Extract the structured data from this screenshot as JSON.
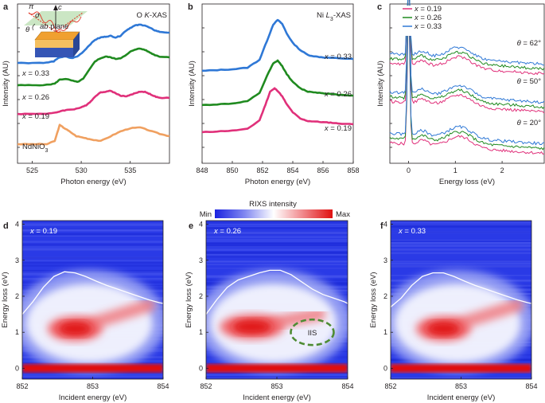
{
  "colors": {
    "x019": "#e0307a",
    "x026": "#1f8a1f",
    "x033": "#2f78d6",
    "nd": "#f0a060",
    "iis": "#4e8c34",
    "axis": "#231f20"
  },
  "panel_labels": {
    "a": "a",
    "b": "b",
    "c": "c",
    "d": "d",
    "e": "e",
    "f": "f"
  },
  "chart_data": [
    {
      "id": "a",
      "type": "line",
      "title": "O K-XAS",
      "title_parts": {
        "pre": "O ",
        "italic": "K",
        "post": "-XAS"
      },
      "xlabel": "Photon energy (eV)",
      "ylabel": "Intensity (AU)",
      "xlim": [
        523.5,
        539
      ],
      "xticks": [
        525,
        530,
        535
      ],
      "ylim": [
        0,
        1
      ],
      "series": [
        {
          "name": "NdNiO3",
          "label_parts": [
            "NdNiO",
            "3"
          ],
          "color_key": "nd",
          "x": [
            523.5,
            525,
            526.5,
            527.3,
            527.8,
            528.3,
            528.8,
            529.5,
            530.3,
            531,
            532,
            533,
            534,
            535,
            536,
            537,
            538,
            539
          ],
          "y": [
            0.12,
            0.12,
            0.12,
            0.14,
            0.24,
            0.22,
            0.2,
            0.17,
            0.16,
            0.15,
            0.14,
            0.17,
            0.2,
            0.22,
            0.225,
            0.205,
            0.185,
            0.17
          ]
        },
        {
          "name": "x = 0.19",
          "label_parts": [
            "x",
            " = 0.19"
          ],
          "color_key": "x019",
          "x": [
            523.5,
            525,
            526.5,
            527.5,
            528,
            528.6,
            529.3,
            530,
            530.5,
            531,
            531.5,
            532,
            532.5,
            533,
            533.5,
            534,
            534.5,
            535,
            535.5,
            536,
            536.5,
            537,
            537.5,
            538,
            539
          ],
          "y": [
            0.31,
            0.31,
            0.312,
            0.318,
            0.33,
            0.335,
            0.34,
            0.35,
            0.365,
            0.39,
            0.425,
            0.445,
            0.45,
            0.455,
            0.44,
            0.425,
            0.42,
            0.428,
            0.44,
            0.45,
            0.448,
            0.435,
            0.42,
            0.41,
            0.41
          ]
        },
        {
          "name": "x = 0.26",
          "label_parts": [
            "x",
            " = 0.26"
          ],
          "color_key": "x026",
          "x": [
            523.5,
            525,
            526.5,
            527.3,
            527.8,
            528.4,
            529,
            529.6,
            530.2,
            530.8,
            531.4,
            532,
            532.5,
            533,
            533.5,
            534,
            534.5,
            535,
            535.5,
            536,
            536.5,
            537,
            537.5,
            538,
            539
          ],
          "y": [
            0.49,
            0.49,
            0.492,
            0.5,
            0.525,
            0.53,
            0.52,
            0.51,
            0.53,
            0.585,
            0.64,
            0.66,
            0.67,
            0.665,
            0.655,
            0.66,
            0.675,
            0.7,
            0.715,
            0.72,
            0.712,
            0.695,
            0.68,
            0.67,
            0.665
          ]
        },
        {
          "name": "x = 0.33",
          "label_parts": [
            "x",
            " = 0.33"
          ],
          "color_key": "x033",
          "x": [
            523.5,
            525,
            526.5,
            527.2,
            527.8,
            528.4,
            529,
            529.6,
            530.2,
            530.8,
            531.4,
            532,
            532.5,
            533,
            533.5,
            534,
            534.5,
            535,
            535.5,
            536,
            536.5,
            537,
            537.5,
            538,
            539
          ],
          "y": [
            0.63,
            0.63,
            0.632,
            0.64,
            0.665,
            0.67,
            0.66,
            0.67,
            0.7,
            0.74,
            0.775,
            0.79,
            0.795,
            0.8,
            0.79,
            0.8,
            0.83,
            0.85,
            0.865,
            0.87,
            0.865,
            0.85,
            0.835,
            0.825,
            0.82
          ]
        }
      ],
      "inset": {
        "pi": "π",
        "sigma": "σ",
        "theta": "θ",
        "c": "c",
        "ab": "ab",
        "plane": " plane"
      }
    },
    {
      "id": "b",
      "type": "line",
      "title": "Ni L3-XAS",
      "title_parts": {
        "pre": "Ni ",
        "italic": "L",
        "sub": "3",
        "post": "-XAS"
      },
      "xlabel": "Photon energy (eV)",
      "ylabel": "Intensity (AU)",
      "xlim": [
        848,
        858
      ],
      "xticks": [
        848,
        850,
        852,
        854,
        856,
        858
      ],
      "ylim": [
        0,
        1
      ],
      "series": [
        {
          "name": "x = 0.19",
          "label_parts": [
            "x",
            " = 0.19"
          ],
          "color_key": "x019",
          "x": [
            848,
            849,
            850,
            851,
            851.8,
            852.2,
            852.5,
            852.8,
            853,
            853.3,
            853.6,
            854,
            854.5,
            855,
            855.5,
            856,
            856.5,
            857,
            858
          ],
          "y": [
            0.195,
            0.2,
            0.205,
            0.215,
            0.27,
            0.37,
            0.45,
            0.47,
            0.455,
            0.42,
            0.37,
            0.32,
            0.28,
            0.265,
            0.262,
            0.258,
            0.255,
            0.25,
            0.245
          ]
        },
        {
          "name": "x = 0.26",
          "label_parts": [
            "x",
            " = 0.26"
          ],
          "color_key": "x026",
          "x": [
            848,
            849,
            850,
            851,
            851.8,
            852.3,
            852.7,
            853,
            853.3,
            853.6,
            854,
            854.5,
            855,
            855.5,
            856,
            856.5,
            857,
            858
          ],
          "y": [
            0.365,
            0.37,
            0.375,
            0.39,
            0.44,
            0.55,
            0.625,
            0.645,
            0.61,
            0.56,
            0.51,
            0.47,
            0.45,
            0.445,
            0.44,
            0.435,
            0.43,
            0.425
          ]
        },
        {
          "name": "x = 0.33",
          "label_parts": [
            "x",
            " = 0.33"
          ],
          "color_key": "x033",
          "x": [
            848,
            849,
            850,
            851,
            851.8,
            852.3,
            852.7,
            853,
            853.3,
            853.6,
            854,
            854.5,
            855,
            855.5,
            856,
            856.5,
            857,
            858
          ],
          "y": [
            0.58,
            0.585,
            0.59,
            0.6,
            0.65,
            0.77,
            0.87,
            0.9,
            0.875,
            0.815,
            0.755,
            0.71,
            0.68,
            0.67,
            0.665,
            0.662,
            0.66,
            0.655
          ]
        }
      ]
    },
    {
      "id": "c",
      "type": "line",
      "xlabel": "Energy loss (eV)",
      "ylabel": "Intensity (AU)",
      "xlim": [
        -0.4,
        2.9
      ],
      "xticks": [
        0,
        1,
        2
      ],
      "ylim": [
        0,
        1
      ],
      "legend": {
        "position": "top-left",
        "entries": [
          {
            "label_parts": [
              "x",
              " = 0.19"
            ],
            "color_key": "x019"
          },
          {
            "label_parts": [
              "x",
              " = 0.26"
            ],
            "color_key": "x026"
          },
          {
            "label_parts": [
              "x",
              " = 0.33"
            ],
            "color_key": "x033"
          }
        ]
      },
      "angles": [
        {
          "label_parts": [
            "θ",
            " = 20°"
          ],
          "base": 0.1
        },
        {
          "label_parts": [
            "θ",
            " = 50°"
          ],
          "base": 0.36
        },
        {
          "label_parts": [
            "θ",
            " = 62°"
          ],
          "base": 0.6
        }
      ],
      "series": [
        {
          "name": "x = 0.19",
          "color_key": "x019",
          "offset": 0
        },
        {
          "name": "x = 0.26",
          "color_key": "x026",
          "offset": 0.03
        },
        {
          "name": "x = 0.33",
          "color_key": "x033",
          "offset": 0.06
        }
      ]
    },
    {
      "id": "d",
      "type": "heatmap",
      "label_parts": [
        "x",
        " = 0.19"
      ],
      "xlabel": "Incident energy (eV)",
      "ylabel": "Energy loss (eV)",
      "xlim": [
        852,
        854
      ],
      "ylim": [
        -0.3,
        4.1
      ],
      "xticks": [
        852,
        853,
        854
      ],
      "yticks": [
        0,
        1,
        2,
        3,
        4
      ],
      "blob": {
        "x": 852.75,
        "y": 1.1,
        "spread_x": 0.3,
        "spread_y": 0.25,
        "tail_to": [
          853.8,
          1.75
        ]
      },
      "xas_curve": {
        "x": [
          852,
          852.15,
          852.3,
          852.45,
          852.6,
          852.75,
          852.9,
          853.05,
          853.2,
          853.35,
          853.5,
          853.65,
          853.8,
          853.95,
          854
        ],
        "y": [
          1.5,
          1.85,
          2.25,
          2.55,
          2.68,
          2.65,
          2.55,
          2.42,
          2.3,
          2.2,
          2.1,
          2.0,
          1.9,
          1.82,
          1.8
        ]
      }
    },
    {
      "id": "e",
      "type": "heatmap",
      "label_parts": [
        "x",
        " = 0.26"
      ],
      "xlabel": "Incident energy (eV)",
      "ylabel": "Energy loss (eV)",
      "xlim": [
        852,
        854
      ],
      "ylim": [
        -0.3,
        4.1
      ],
      "xticks": [
        852,
        853,
        854
      ],
      "yticks": [
        0,
        1,
        2,
        3,
        4
      ],
      "blob": {
        "x": 852.65,
        "y": 1.15,
        "spread_x": 0.35,
        "spread_y": 0.25,
        "tail_to": [
          853.6,
          1.5
        ]
      },
      "iis": {
        "label": "IIS",
        "x": 853.5,
        "y": 1.0
      },
      "xas_curve": {
        "x": [
          852,
          852.15,
          852.3,
          852.45,
          852.6,
          852.75,
          852.9,
          853.05,
          853.2,
          853.35,
          853.5,
          853.65,
          853.8,
          853.95,
          854
        ],
        "y": [
          1.5,
          1.9,
          2.25,
          2.45,
          2.55,
          2.65,
          2.72,
          2.72,
          2.6,
          2.4,
          2.2,
          2.05,
          1.95,
          1.85,
          1.8
        ]
      }
    },
    {
      "id": "f",
      "type": "heatmap",
      "label_parts": [
        "x",
        " = 0.33"
      ],
      "xlabel": "Incident energy (eV)",
      "ylabel": "Energy loss (eV)",
      "xlim": [
        852,
        854
      ],
      "ylim": [
        -0.3,
        4.1
      ],
      "xticks": [
        852,
        853,
        854
      ],
      "yticks": [
        0,
        1,
        2,
        3,
        4
      ],
      "blob": {
        "x": 852.75,
        "y": 1.1,
        "spread_x": 0.3,
        "spread_y": 0.25,
        "tail_to": [
          853.8,
          1.75
        ]
      },
      "xas_curve": {
        "x": [
          852,
          852.15,
          852.3,
          852.45,
          852.6,
          852.75,
          852.9,
          853.05,
          853.2,
          853.35,
          853.5,
          853.65,
          853.8,
          853.95,
          854
        ],
        "y": [
          1.7,
          1.95,
          2.3,
          2.55,
          2.65,
          2.65,
          2.55,
          2.42,
          2.3,
          2.2,
          2.1,
          2.0,
          1.9,
          1.82,
          1.8
        ]
      }
    }
  ],
  "colorbar": {
    "title": "RIXS intensity",
    "min": "Min",
    "max": "Max"
  }
}
